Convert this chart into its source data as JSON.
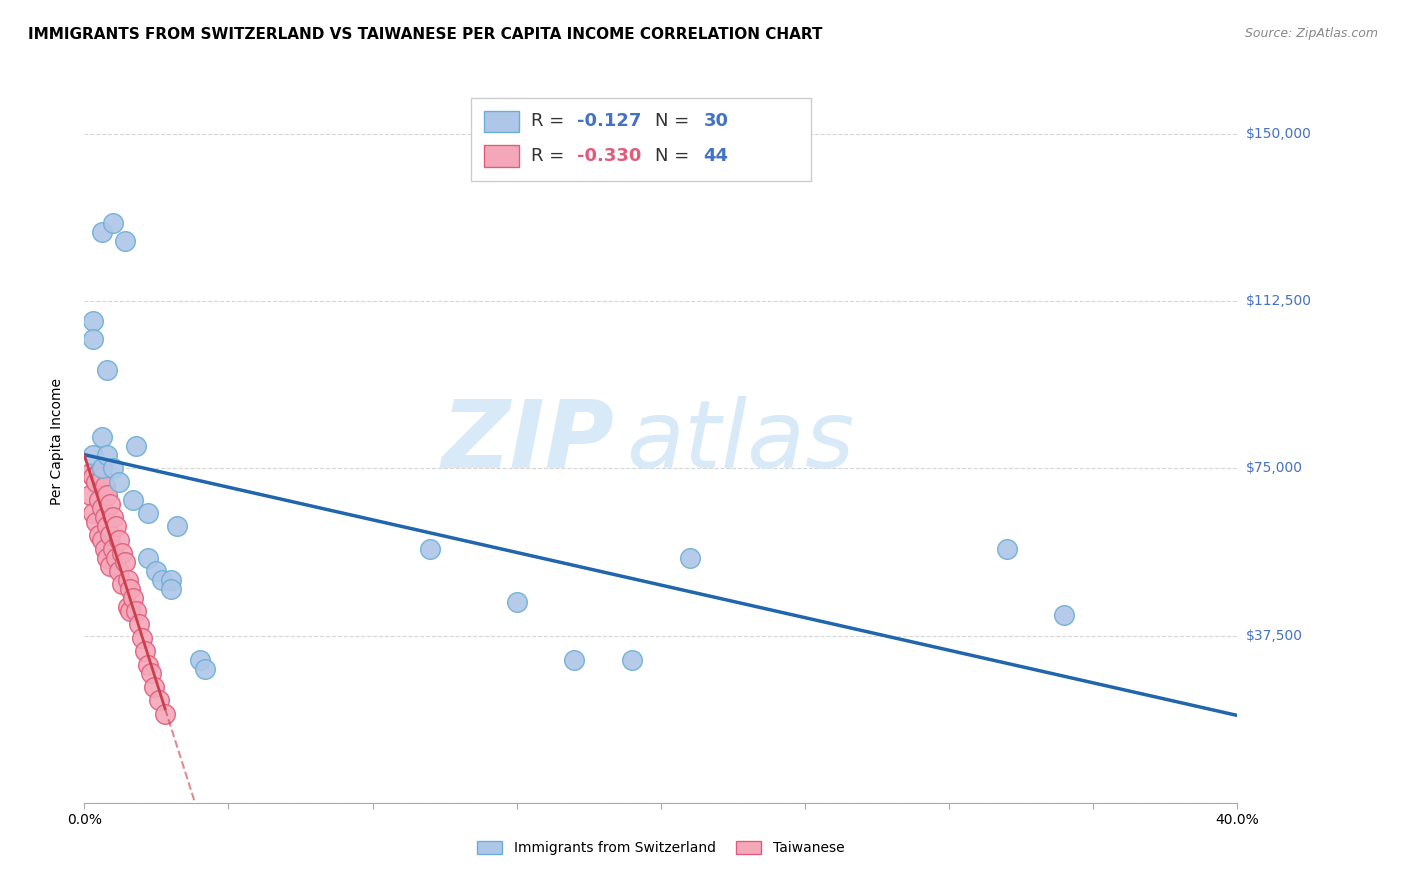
{
  "title": "IMMIGRANTS FROM SWITZERLAND VS TAIWANESE PER CAPITA INCOME CORRELATION CHART",
  "source": "Source: ZipAtlas.com",
  "ylabel": "Per Capita Income",
  "yticks": [
    0,
    37500,
    75000,
    112500,
    150000
  ],
  "ytick_labels": [
    "",
    "$37,500",
    "$75,000",
    "$112,500",
    "$150,000"
  ],
  "xlim": [
    0.0,
    0.4
  ],
  "ylim": [
    0,
    162000
  ],
  "watermark_zip": "ZIP",
  "watermark_atlas": "atlas",
  "blue_color": "#aec6e8",
  "blue_edge": "#6aaed6",
  "pink_color": "#f4a7b9",
  "pink_edge": "#e05c7a",
  "blue_line_color": "#2166ac",
  "pink_line_color": "#c9404a",
  "legend_blue_r": "-0.127",
  "legend_blue_n": "30",
  "legend_pink_r": "-0.330",
  "legend_pink_n": "44",
  "blue_scatter_x": [
    0.006,
    0.01,
    0.014,
    0.003,
    0.003,
    0.006,
    0.003,
    0.006,
    0.008,
    0.008,
    0.01,
    0.012,
    0.017,
    0.018,
    0.022,
    0.022,
    0.025,
    0.027,
    0.03,
    0.03,
    0.032,
    0.04,
    0.042,
    0.34,
    0.32,
    0.15,
    0.17,
    0.19,
    0.21,
    0.12
  ],
  "blue_scatter_y": [
    128000,
    130000,
    126000,
    108000,
    104000,
    82000,
    78000,
    75000,
    78000,
    97000,
    75000,
    72000,
    68000,
    80000,
    65000,
    55000,
    52000,
    50000,
    50000,
    48000,
    62000,
    32000,
    30000,
    42000,
    57000,
    45000,
    32000,
    32000,
    55000,
    57000
  ],
  "pink_scatter_x": [
    0.002,
    0.002,
    0.003,
    0.003,
    0.004,
    0.004,
    0.005,
    0.005,
    0.005,
    0.006,
    0.006,
    0.006,
    0.007,
    0.007,
    0.007,
    0.008,
    0.008,
    0.008,
    0.009,
    0.009,
    0.009,
    0.01,
    0.01,
    0.011,
    0.011,
    0.012,
    0.012,
    0.013,
    0.013,
    0.014,
    0.015,
    0.015,
    0.016,
    0.016,
    0.017,
    0.018,
    0.019,
    0.02,
    0.021,
    0.022,
    0.023,
    0.024,
    0.026,
    0.028
  ],
  "pink_scatter_y": [
    74000,
    69000,
    73000,
    65000,
    72000,
    63000,
    74000,
    68000,
    60000,
    73000,
    66000,
    59000,
    71000,
    64000,
    57000,
    69000,
    62000,
    55000,
    67000,
    60000,
    53000,
    64000,
    57000,
    62000,
    55000,
    59000,
    52000,
    56000,
    49000,
    54000,
    50000,
    44000,
    48000,
    43000,
    46000,
    43000,
    40000,
    37000,
    34000,
    31000,
    29000,
    26000,
    23000,
    20000
  ],
  "title_fontsize": 11,
  "axis_label_fontsize": 10,
  "tick_fontsize": 10,
  "legend_fontsize": 13,
  "watermark_fontsize_zip": 68,
  "watermark_fontsize_atlas": 68,
  "watermark_color": "#d8eaf8",
  "background_color": "#ffffff",
  "grid_color": "#cccccc"
}
